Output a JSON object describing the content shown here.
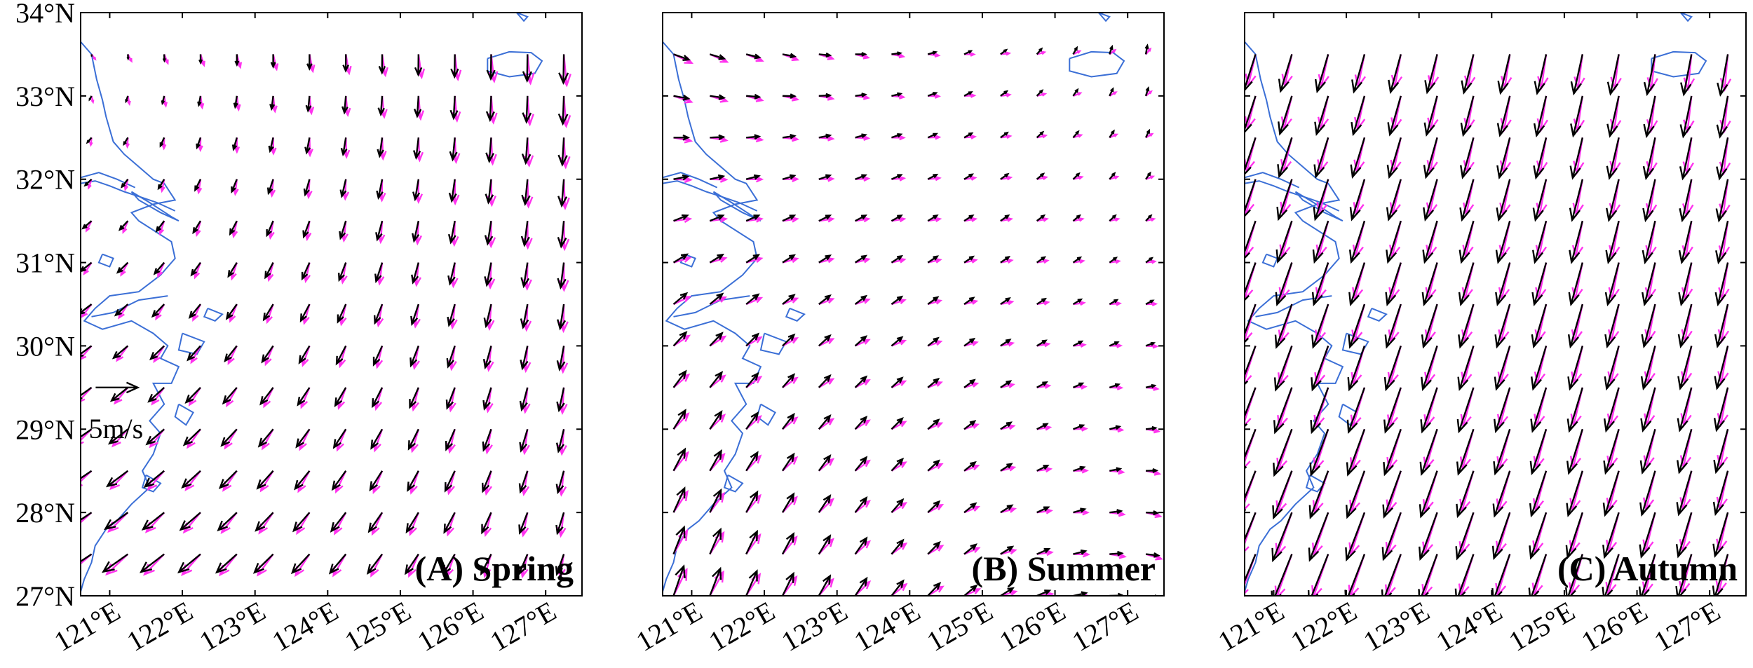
{
  "figure": {
    "lon_range": [
      120.6,
      127.5
    ],
    "lat_range": [
      27.0,
      34.0
    ],
    "lat_ticks": [
      {
        "value": 27,
        "label": "27°N"
      },
      {
        "value": 28,
        "label": "28°N"
      },
      {
        "value": 29,
        "label": "29°N"
      },
      {
        "value": 30,
        "label": "30°N"
      },
      {
        "value": 31,
        "label": "31°N"
      },
      {
        "value": 32,
        "label": "32°N"
      },
      {
        "value": 33,
        "label": "33°N"
      },
      {
        "value": 34,
        "label": "34°N"
      }
    ],
    "lon_ticks": [
      {
        "value": 121,
        "label": "121°E"
      },
      {
        "value": 122,
        "label": "122°E"
      },
      {
        "value": 123,
        "label": "123°E"
      },
      {
        "value": 124,
        "label": "124°E"
      },
      {
        "value": 125,
        "label": "125°E"
      },
      {
        "value": 126,
        "label": "126°E"
      },
      {
        "value": 127,
        "label": "127°E"
      }
    ],
    "colors": {
      "coastline": "#3b6fd6",
      "vector_a": "#000000",
      "vector_b": "#ff33ee",
      "frame": "#000000"
    },
    "scale_vector": {
      "speed_ms": 5,
      "label": "5m/s",
      "lon": 121.0,
      "lat": 29.5
    },
    "vector_grid": {
      "lon_start": 120.75,
      "lat_start": 27.0,
      "step": 0.5
    }
  },
  "panels": [
    {
      "id": "A",
      "label": "(A) Spring",
      "show_lat_labels": true,
      "show_scale": true,
      "wind": {
        "north_u": 0.3,
        "north_v": -0.05,
        "ne_u": 0.0,
        "ne_v": -3.6,
        "sw_u": -3.4,
        "sw_v": -2.2,
        "mid_u": -0.8,
        "mid_v": -2.3,
        "diff_u": 0.4,
        "diff_v": -0.3
      }
    },
    {
      "id": "B",
      "label": "(B) Summer",
      "show_lat_labels": false,
      "show_scale": false,
      "wind": {
        "north_u": 1.9,
        "north_v": -1.0,
        "ne_u": 0.0,
        "ne_v": 1.2,
        "sw_u": 1.2,
        "sw_v": 3.6,
        "mid_u": 1.6,
        "mid_v": -0.4,
        "diff_u": 0.35,
        "diff_v": -0.4
      }
    },
    {
      "id": "C",
      "label": "(C) Autumn",
      "show_lat_labels": false,
      "show_scale": false,
      "wind": {
        "north_u": -1.3,
        "north_v": -4.2,
        "ne_u": -0.8,
        "ne_v": -4.8,
        "sw_u": -2.5,
        "sw_v": -6.0,
        "mid_u": -1.6,
        "mid_v": -5.2,
        "diff_u": 0.5,
        "diff_v": 0.6
      }
    }
  ]
}
